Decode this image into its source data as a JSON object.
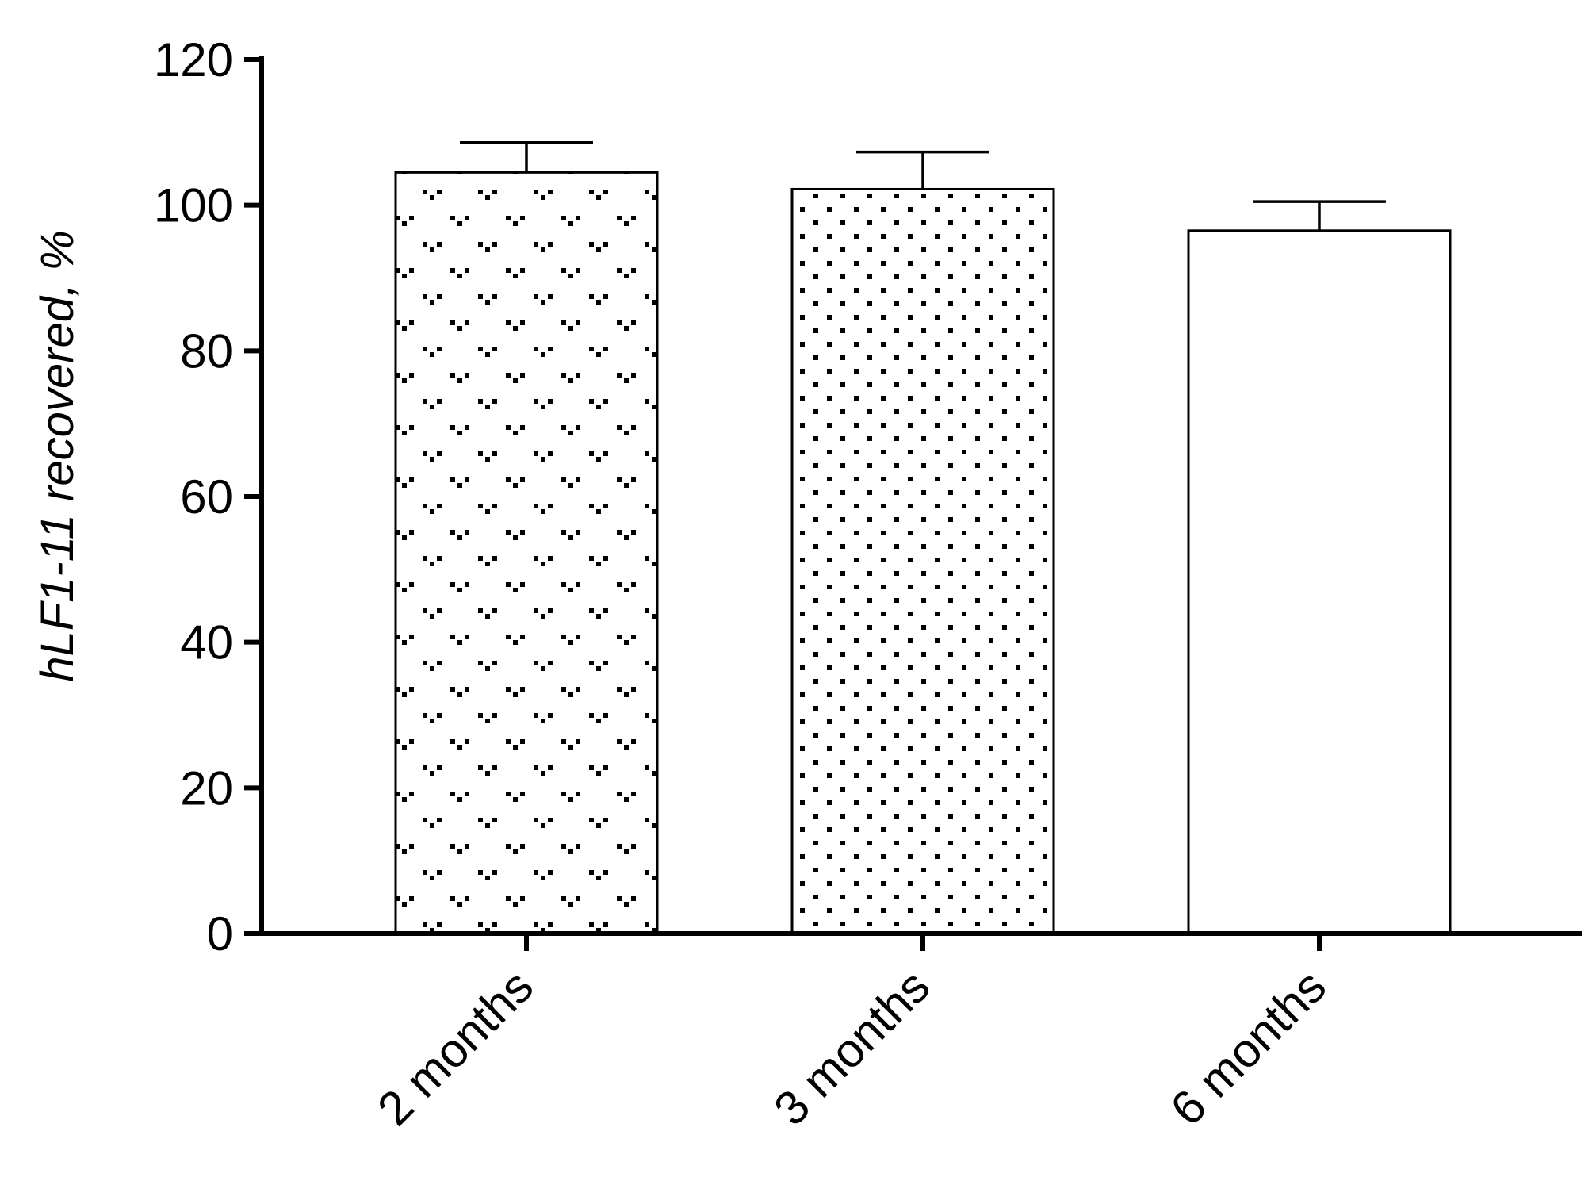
{
  "chart_data": {
    "type": "bar",
    "title": "",
    "xlabel": "",
    "ylabel": "hLF1-11 recovered, %",
    "categories": [
      "2 months",
      "3 months",
      "6 months"
    ],
    "values": [
      104.5,
      102.2,
      96.5
    ],
    "error_bars": [
      4.1,
      5.1,
      4.0
    ],
    "ylim": [
      0,
      120
    ],
    "yticks": [
      "0",
      "20",
      "40",
      "60",
      "80",
      "100",
      "120"
    ],
    "grid": false,
    "bar_fills": [
      "arrowhead-pattern",
      "dot-pattern",
      "white"
    ],
    "colors": {
      "axis": "#000000",
      "bar_edge": "#000000",
      "background": "#ffffff"
    }
  }
}
